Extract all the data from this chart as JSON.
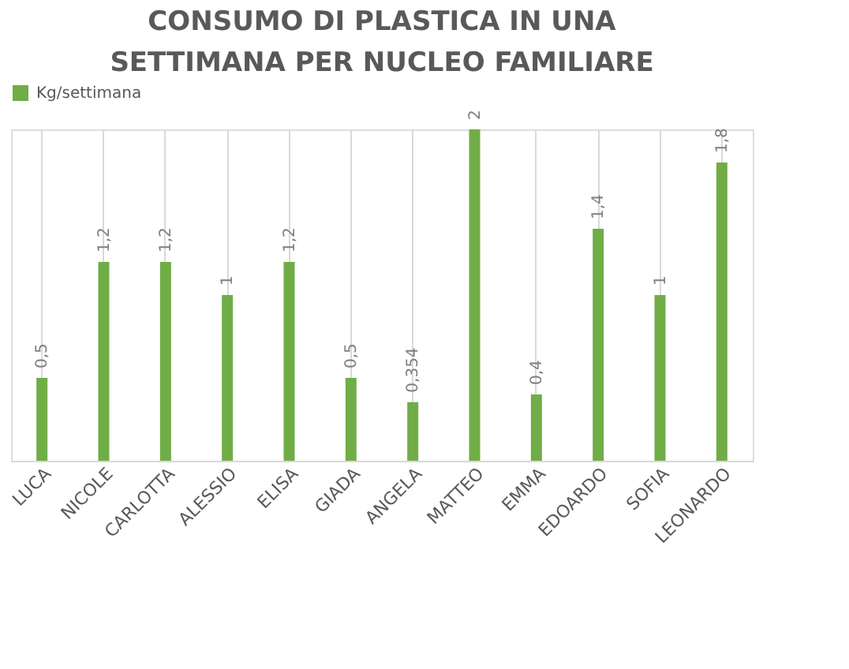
{
  "chart_data": {
    "type": "bar",
    "title": "CONSUMO DI PLASTICA IN UNA SETTIMANA PER NUCLEO FAMILIARE",
    "categories": [
      "LUCA",
      "NICOLE",
      "CARLOTTA",
      "ALESSIO",
      "ELISA",
      "GIADA",
      "ANGELA",
      "MATTEO",
      "EMMA",
      "EDOARDO",
      "SOFIA",
      "LEONARDO"
    ],
    "series": [
      {
        "name": "Kg/settimana",
        "color": "#70ad47",
        "values": [
          0.5,
          1.2,
          1.2,
          1,
          1.2,
          0.5,
          0.354,
          2,
          0.4,
          1.4,
          1,
          1.8
        ],
        "value_labels": [
          "0,5",
          "1,2",
          "1,2",
          "1",
          "1,2",
          "0,5",
          "0,354",
          "2",
          "0,4",
          "1,4",
          "1",
          "1,8"
        ]
      }
    ],
    "legend": "top",
    "grid": "x",
    "tick_labels": "x"
  }
}
